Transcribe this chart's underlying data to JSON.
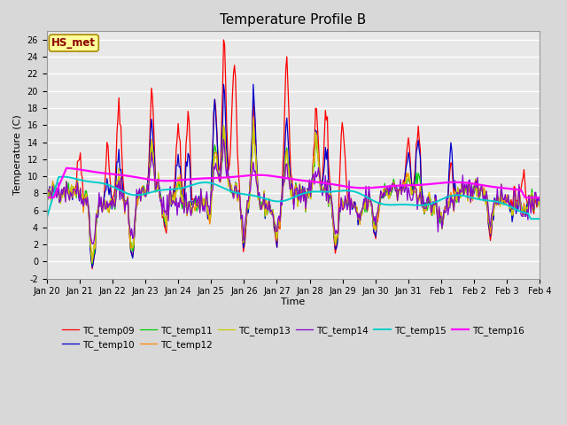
{
  "title": "Temperature Profile B",
  "xlabel": "Time",
  "ylabel": "Temperature (C)",
  "ylim": [
    -2,
    27
  ],
  "yticks": [
    -2,
    0,
    2,
    4,
    6,
    8,
    10,
    12,
    14,
    16,
    18,
    20,
    22,
    24,
    26
  ],
  "date_labels": [
    "Jan 20",
    "Jan 21",
    "Jan 22",
    "Jan 23",
    "Jan 24",
    "Jan 25",
    "Jan 26",
    "Jan 27",
    "Jan 28",
    "Jan 29",
    "Jan 30",
    "Jan 31",
    "Feb 1",
    "Feb 2",
    "Feb 3",
    "Feb 4"
  ],
  "annotation_text": "HS_met",
  "annotation_color": "#8B0000",
  "annotation_bg": "#FFFF99",
  "legend_entries": [
    {
      "label": "TC_temp09",
      "color": "#FF0000"
    },
    {
      "label": "TC_temp10",
      "color": "#0000CC"
    },
    {
      "label": "TC_temp11",
      "color": "#00CC00"
    },
    {
      "label": "TC_temp12",
      "color": "#FF8800"
    },
    {
      "label": "TC_temp13",
      "color": "#CCCC00"
    },
    {
      "label": "TC_temp14",
      "color": "#8800CC"
    },
    {
      "label": "TC_temp15",
      "color": "#00CCCC"
    },
    {
      "label": "TC_temp16",
      "color": "#FF00FF"
    }
  ],
  "bg_color": "#D8D8D8",
  "plot_bg_color": "#E8E8E8",
  "grid_color": "#FFFFFF",
  "n_points": 500,
  "title_fontsize": 11,
  "tick_fontsize": 7,
  "label_fontsize": 8,
  "legend_fontsize": 7.5
}
